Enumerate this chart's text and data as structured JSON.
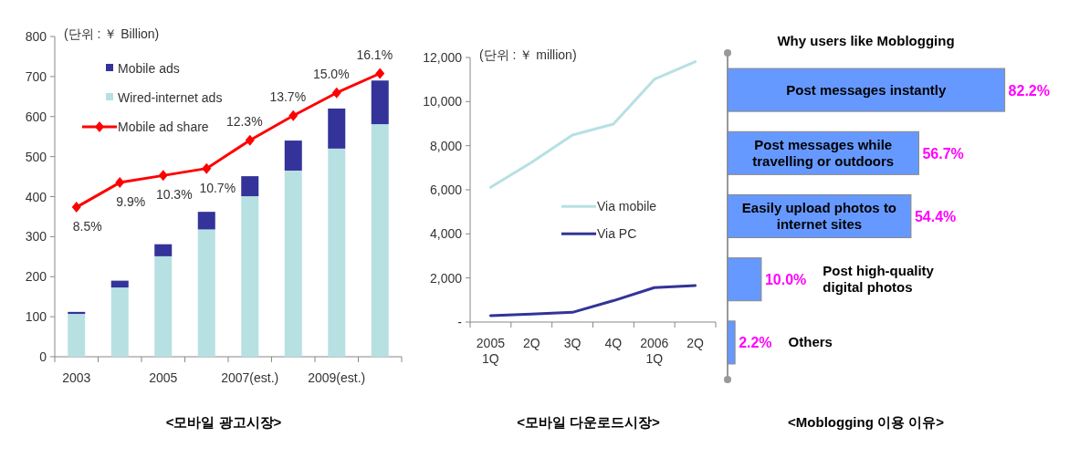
{
  "chart_data": [
    {
      "type": "bar",
      "stacked": true,
      "categories": [
        "2003",
        null,
        "2005",
        null,
        "2007(est.)",
        null,
        "2009(est.)",
        null
      ],
      "series": [
        {
          "name": "Wired-internet ads",
          "color": "#b7e0e3",
          "values": [
            107,
            173,
            251,
            318,
            401,
            465,
            520,
            581
          ]
        },
        {
          "name": "Mobile ads",
          "color": "#333399",
          "values": [
            5,
            17,
            30,
            44,
            50,
            75,
            100,
            109
          ]
        },
        {
          "name": "Mobile ad share",
          "type": "line",
          "axis": "y2",
          "color": "#ff0000",
          "marker": "diamond",
          "values": [
            8.5,
            9.9,
            10.3,
            10.7,
            12.3,
            13.7,
            15.0,
            16.1
          ],
          "value_labels": [
            "8.5%",
            "9.9%",
            "10.3%",
            "10.7%",
            "12.3%",
            "13.7%",
            "15.0%",
            "16.1%"
          ]
        }
      ],
      "ylim": [
        0,
        800
      ],
      "yticks": [
        0,
        100,
        200,
        300,
        400,
        500,
        600,
        700,
        800
      ],
      "y2lim": [
        0,
        18.2
      ],
      "legend": "top left",
      "annotations": [
        "(단위 : ￥ Billion)",
        "<모바일 광고시장>"
      ]
    },
    {
      "type": "line",
      "categories": [
        "2005\n1Q",
        "2Q",
        "3Q",
        "4Q",
        "2006\n1Q",
        "2Q"
      ],
      "series": [
        {
          "name": "Via mobile",
          "color": "#b7e0e3",
          "values": [
            6110,
            7240,
            8480,
            8980,
            11010,
            11810
          ]
        },
        {
          "name": "Via PC",
          "color": "#333399",
          "values": [
            290,
            360,
            440,
            970,
            1560,
            1660
          ]
        }
      ],
      "ylim": [
        0,
        12000
      ],
      "yticks": [
        {
          "value": 0,
          "label": "-"
        },
        {
          "value": 2000,
          "label": "2,000"
        },
        {
          "value": 4000,
          "label": "4,000"
        },
        {
          "value": 6000,
          "label": "6,000"
        },
        {
          "value": 8000,
          "label": "8,000"
        },
        {
          "value": 10000,
          "label": "10,000"
        },
        {
          "value": 12000,
          "label": "12,000"
        }
      ],
      "legend": "center",
      "annotations": [
        "(단위 : ￥ million)",
        "<모바일 다운로드시장>"
      ]
    },
    {
      "type": "bar",
      "orientation": "horizontal",
      "title": "Why users like Moblogging",
      "categories": [
        "Post messages instantly",
        "Post messages while travelling or outdoors",
        "Easily upload photos to internet sites",
        "Post high-quality digital photos",
        "Others"
      ],
      "values": [
        82.2,
        56.7,
        54.4,
        10.0,
        2.2
      ],
      "color": "#6699ff",
      "value_labels": [
        "82.2%",
        "56.7%",
        "54.4%",
        "10.0%",
        "2.2%"
      ],
      "annotations": [
        "<Moblogging 이용 이유>"
      ]
    }
  ]
}
